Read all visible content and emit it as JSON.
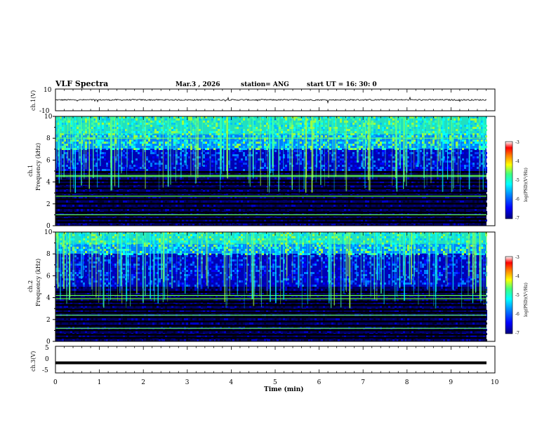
{
  "header": {
    "title": "VLF Spectra",
    "date": "Mar.3  , 2026",
    "station": "station= ANG",
    "start": "start  UT  =   16: 30: 0"
  },
  "colors": {
    "axis": "#000000",
    "waveform": "#000000",
    "spectrum_scale": [
      "#00007f",
      "#0000ff",
      "#007fff",
      "#00ffff",
      "#7fff7f",
      "#ffff00",
      "#ff7f00",
      "#ff0000",
      "#ffffff"
    ]
  },
  "chart_data": [
    {
      "type": "line",
      "name": "ch1-waveform",
      "ylabel": "ch.1(V)",
      "ylim": [
        -10,
        10
      ],
      "y_ticks": [
        "10",
        "-10"
      ],
      "xlim": [
        0,
        10
      ],
      "approx_level": 0,
      "description_values": {
        "mean": 0.0,
        "spread": 0.6
      }
    },
    {
      "type": "heatmap",
      "name": "ch1-spectrogram",
      "ylabel": "Frequency (kHz)",
      "channel_label": "ch.1",
      "ylim": [
        0,
        10
      ],
      "y_ticks": [
        "0",
        "2",
        "4",
        "6",
        "8",
        "10"
      ],
      "xlim": [
        0,
        10
      ],
      "colorbar": {
        "label": "log(PSD)(V²/Hz)",
        "range": [
          -7,
          -3
        ],
        "ticks": [
          "-3",
          "-4",
          "-5",
          "-6",
          "-7"
        ]
      },
      "bands_khz": [
        0.3,
        0.6,
        0.9,
        1.2,
        1.6,
        2.0,
        2.4,
        2.7,
        3.0,
        3.4,
        3.8,
        4.1,
        4.6,
        4.9
      ],
      "green_lines_khz": [
        1.0,
        2.7,
        4.5,
        4.6,
        8.0
      ],
      "noise_floor_khz": 5.0,
      "high_noise_khz": 7.0
    },
    {
      "type": "heatmap",
      "name": "ch2-spectrogram",
      "ylabel": "Frequency (kHz)",
      "channel_label": "ch.2",
      "ylim": [
        0,
        10
      ],
      "y_ticks": [
        "0",
        "2",
        "4",
        "6",
        "8",
        "10"
      ],
      "xlim": [
        0,
        10
      ],
      "colorbar": {
        "label": "log(PSD)(V²/Hz)",
        "range": [
          -7,
          -3
        ],
        "ticks": [
          "-3",
          "-4",
          "-5",
          "-6",
          "-7"
        ]
      },
      "bands_khz": [
        0.3,
        0.6,
        1.0,
        1.4,
        1.8,
        2.2,
        2.6,
        2.9,
        3.3,
        3.6,
        3.9,
        4.2,
        4.5
      ],
      "green_lines_khz": [
        1.2,
        2.4,
        3.9,
        4.2
      ],
      "noise_floor_khz": 5.0,
      "high_noise_khz": 8.0
    },
    {
      "type": "line",
      "name": "ch3-waveform",
      "ylabel": "ch.3(V)",
      "ylim": [
        -5,
        5
      ],
      "y_ticks": [
        "5",
        "0",
        "-5"
      ],
      "xlim": [
        0,
        10
      ],
      "approx_level": -1.2
    }
  ],
  "xaxis": {
    "label": "Time (min)",
    "ticks": [
      "0",
      "1",
      "2",
      "3",
      "4",
      "5",
      "6",
      "7",
      "8",
      "9",
      "10"
    ]
  }
}
